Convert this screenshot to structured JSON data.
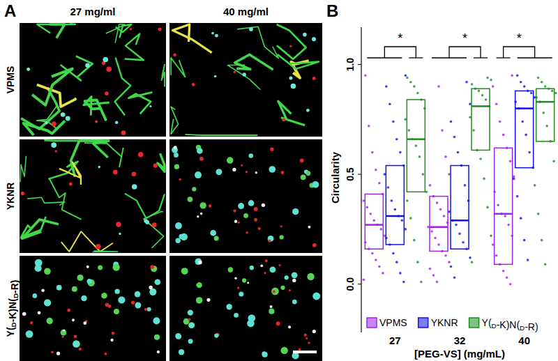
{
  "panel_a": {
    "label": "A",
    "columns": [
      "27 mg/ml",
      "40 mg/ml"
    ],
    "rows": [
      "VPMS",
      "YKNR",
      "Y(D-K)N(D-R)"
    ]
  },
  "chart_data": {
    "type": "box",
    "panel_label": "B",
    "x_label": "[PEG-VS] (mg/mL)",
    "y_label": "Circularity",
    "categories": [
      "27",
      "32",
      "40"
    ],
    "ylim": [
      -0.22,
      1.17
    ],
    "yticks": [
      {
        "value": 0,
        "label": "0.0"
      },
      {
        "value": 0.5,
        "label": "0.5"
      },
      {
        "value": 1,
        "label": "1.0"
      }
    ],
    "legend": "bottom",
    "series": [
      {
        "name": "VPMS",
        "color": "#a020f0",
        "q1": [
          0.16,
          0.15,
          0.09
        ],
        "median": [
          0.27,
          0.26,
          0.32
        ],
        "q3": [
          0.41,
          0.4,
          0.62
        ],
        "points": [
          [
            0.02,
            0.05,
            0.08,
            0.11,
            0.14,
            0.16,
            0.19,
            0.22,
            0.25,
            0.27,
            0.29,
            0.32,
            0.35,
            0.38,
            0.41,
            0.46,
            0.52,
            0.6,
            0.72,
            0.95
          ],
          [
            0.01,
            0.04,
            0.07,
            0.1,
            0.13,
            0.15,
            0.18,
            0.21,
            0.24,
            0.26,
            0.28,
            0.31,
            0.34,
            0.37,
            0.4,
            0.45,
            0.5,
            0.58,
            0.7,
            0.9
          ],
          [
            0.0,
            0.03,
            0.06,
            0.09,
            0.13,
            0.18,
            0.22,
            0.27,
            0.31,
            0.32,
            0.36,
            0.42,
            0.49,
            0.56,
            0.62,
            0.68,
            0.74,
            0.82,
            0.9,
            0.95
          ]
        ]
      },
      {
        "name": "YKNR",
        "color": "#1010f0",
        "q1": [
          0.18,
          0.16,
          0.53
        ],
        "median": [
          0.31,
          0.29,
          0.8
        ],
        "q3": [
          0.54,
          0.54,
          0.88
        ],
        "points": [
          [
            0.01,
            0.05,
            0.1,
            0.14,
            0.18,
            0.21,
            0.25,
            0.29,
            0.31,
            0.34,
            0.38,
            0.44,
            0.5,
            0.54,
            0.6,
            0.66,
            0.74,
            0.82,
            0.9,
            0.95
          ],
          [
            0.03,
            0.08,
            0.12,
            0.16,
            0.19,
            0.23,
            0.27,
            0.29,
            0.33,
            0.38,
            0.45,
            0.54,
            0.6,
            0.67,
            0.74,
            0.82,
            0.92
          ],
          [
            0.11,
            0.2,
            0.3,
            0.4,
            0.48,
            0.53,
            0.6,
            0.68,
            0.74,
            0.8,
            0.83,
            0.85,
            0.87,
            0.88,
            0.9,
            0.92,
            0.95
          ]
        ]
      },
      {
        "name": "Y(D-K)N(D-R)",
        "color": "#1e8c1e",
        "q1": [
          0.42,
          0.61,
          0.65
        ],
        "median": [
          0.66,
          0.81,
          0.83
        ],
        "q3": [
          0.84,
          0.89,
          0.89
        ],
        "points": [
          [
            0.01,
            0.1,
            0.2,
            0.3,
            0.38,
            0.42,
            0.5,
            0.58,
            0.63,
            0.66,
            0.7,
            0.75,
            0.8,
            0.84,
            0.87,
            0.9,
            0.92,
            0.94
          ],
          [
            0.1,
            0.22,
            0.35,
            0.48,
            0.57,
            0.61,
            0.7,
            0.76,
            0.81,
            0.84,
            0.86,
            0.88,
            0.89,
            0.91,
            0.93,
            0.94
          ],
          [
            0.09,
            0.2,
            0.32,
            0.45,
            0.56,
            0.65,
            0.72,
            0.78,
            0.83,
            0.85,
            0.87,
            0.88,
            0.89,
            0.9,
            0.92,
            0.94
          ]
        ]
      }
    ],
    "significance": [
      {
        "category": 0,
        "left": [
          0,
          1
        ],
        "right": [
          2
        ],
        "label": "*"
      },
      {
        "category": 1,
        "left": [
          0,
          1
        ],
        "right": [
          2
        ],
        "label": "*"
      },
      {
        "category": 2,
        "left": [
          0
        ],
        "right": [
          1,
          2
        ],
        "label": "*"
      }
    ]
  }
}
